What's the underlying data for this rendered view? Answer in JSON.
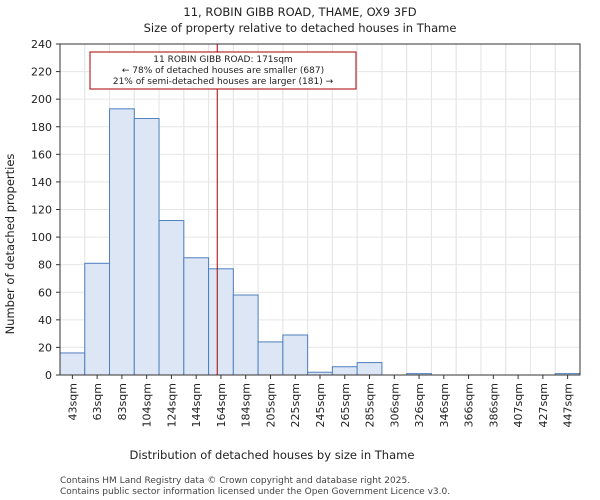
{
  "title": {
    "line1": "11, ROBIN GIBB ROAD, THAME, OX9 3FD",
    "line2": "Size of property relative to detached houses in Thame"
  },
  "annotation": {
    "line1": "11 ROBIN GIBB ROAD: 171sqm",
    "line2": "← 78% of detached houses are smaller (687)",
    "line3": "21% of semi-detached houses are larger (181) →"
  },
  "footer": {
    "line1": "Contains HM Land Registry data © Crown copyright and database right 2025.",
    "line2": "Contains public sector information licensed under the Open Government Licence v3.0."
  },
  "colors": {
    "bar_fill": "#dce6f5",
    "bar_stroke": "#4f7fbf",
    "marker_line": "#aa0000",
    "annotation_border": "#aa0000",
    "grid": "#e6e6e6"
  },
  "chart_data": {
    "type": "bar",
    "title": "11, ROBIN GIBB ROAD, THAME, OX9 3FD\nSize of property relative to detached houses in Thame",
    "xlabel": "Distribution of detached houses by size in Thame",
    "ylabel": "Number of detached properties",
    "categories": [
      "43sqm",
      "63sqm",
      "83sqm",
      "104sqm",
      "124sqm",
      "144sqm",
      "164sqm",
      "184sqm",
      "205sqm",
      "225sqm",
      "245sqm",
      "265sqm",
      "285sqm",
      "306sqm",
      "326sqm",
      "346sqm",
      "366sqm",
      "386sqm",
      "407sqm",
      "427sqm",
      "447sqm"
    ],
    "values": [
      16,
      81,
      193,
      186,
      112,
      85,
      77,
      58,
      24,
      29,
      2,
      6,
      9,
      0,
      1,
      0,
      0,
      0,
      0,
      0,
      1
    ],
    "ylim": [
      0,
      240
    ],
    "yticks": [
      0,
      20,
      40,
      60,
      80,
      100,
      120,
      140,
      160,
      180,
      200,
      220,
      240
    ],
    "grid": true,
    "marker": {
      "value_sqm": 171,
      "bin_index_position": 6.35
    }
  }
}
